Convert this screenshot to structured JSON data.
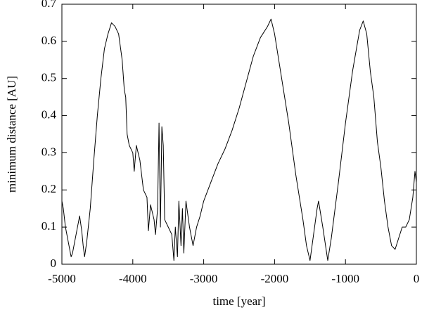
{
  "chart_data": {
    "type": "line",
    "x_label": "time [year]",
    "y_label": "minimum distance [AU]",
    "xlim": [
      -5000,
      0
    ],
    "ylim": [
      0,
      0.7
    ],
    "xticks": [
      -5000,
      -4000,
      -3000,
      -2000,
      -1000,
      0
    ],
    "yticks": [
      0,
      0.1,
      0.2,
      0.3,
      0.4,
      0.5,
      0.6,
      0.7
    ],
    "series": [
      {
        "color": "#000000",
        "x": [
          -5000,
          -4980,
          -4950,
          -4900,
          -4870,
          -4850,
          -4800,
          -4750,
          -4720,
          -4700,
          -4680,
          -4650,
          -4600,
          -4550,
          -4500,
          -4450,
          -4400,
          -4350,
          -4300,
          -4250,
          -4200,
          -4150,
          -4120,
          -4100,
          -4080,
          -4050,
          -4000,
          -3980,
          -3950,
          -3900,
          -3850,
          -3800,
          -3780,
          -3750,
          -3700,
          -3680,
          -3650,
          -3630,
          -3610,
          -3590,
          -3570,
          -3550,
          -3500,
          -3450,
          -3420,
          -3400,
          -3370,
          -3350,
          -3320,
          -3300,
          -3280,
          -3250,
          -3200,
          -3150,
          -3100,
          -3050,
          -3000,
          -2900,
          -2800,
          -2700,
          -2600,
          -2500,
          -2400,
          -2300,
          -2200,
          -2100,
          -2050,
          -2000,
          -1900,
          -1800,
          -1700,
          -1600,
          -1550,
          -1500,
          -1450,
          -1400,
          -1380,
          -1320,
          -1250,
          -1200,
          -1100,
          -1000,
          -900,
          -800,
          -750,
          -700,
          -650,
          -600,
          -550,
          -500,
          -450,
          -400,
          -350,
          -300,
          -250,
          -200,
          -150,
          -100,
          -50,
          -20,
          0
        ],
        "values": [
          0.17,
          0.15,
          0.1,
          0.05,
          0.02,
          0.03,
          0.08,
          0.13,
          0.09,
          0.05,
          0.02,
          0.06,
          0.15,
          0.28,
          0.4,
          0.5,
          0.58,
          0.62,
          0.65,
          0.64,
          0.62,
          0.55,
          0.47,
          0.45,
          0.35,
          0.32,
          0.3,
          0.25,
          0.32,
          0.28,
          0.2,
          0.18,
          0.09,
          0.16,
          0.12,
          0.08,
          0.15,
          0.38,
          0.1,
          0.37,
          0.32,
          0.12,
          0.1,
          0.08,
          0.01,
          0.1,
          0.02,
          0.17,
          0.05,
          0.15,
          0.03,
          0.17,
          0.1,
          0.05,
          0.1,
          0.13,
          0.17,
          0.22,
          0.27,
          0.31,
          0.36,
          0.42,
          0.49,
          0.56,
          0.61,
          0.64,
          0.66,
          0.62,
          0.5,
          0.38,
          0.24,
          0.12,
          0.05,
          0.01,
          0.08,
          0.15,
          0.17,
          0.1,
          0.01,
          0.07,
          0.22,
          0.38,
          0.52,
          0.63,
          0.655,
          0.62,
          0.52,
          0.45,
          0.33,
          0.26,
          0.17,
          0.1,
          0.05,
          0.04,
          0.07,
          0.1,
          0.1,
          0.12,
          0.18,
          0.25,
          0.22
        ]
      }
    ]
  }
}
